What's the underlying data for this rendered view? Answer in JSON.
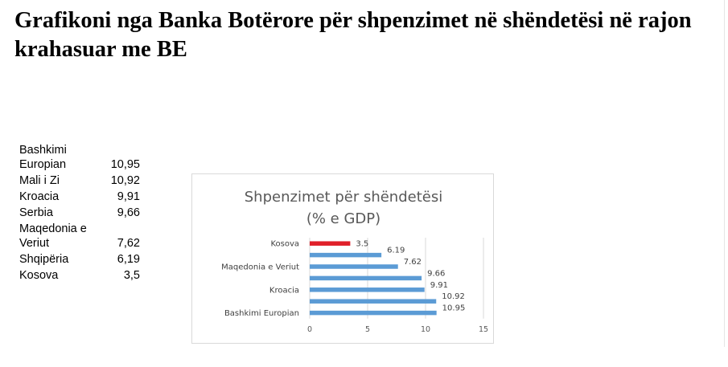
{
  "page": {
    "title": "Grafikoni nga Banka Botërore për shpenzimet në shëndetësi në rajon krahasuar me BE"
  },
  "table": {
    "rows": [
      {
        "name": "Bashkimi Europian",
        "value": "10,95"
      },
      {
        "name": "Mali i Zi",
        "value": "10,92"
      },
      {
        "name": "Kroacia",
        "value": "9,91"
      },
      {
        "name": "Serbia",
        "value": "9,66"
      },
      {
        "name": "Maqedonia e Veriut",
        "value": "7,62"
      },
      {
        "name": "Shqipëria",
        "value": "6,19"
      },
      {
        "name": "Kosova",
        "value": "3,5"
      }
    ]
  },
  "chart_data": {
    "type": "bar",
    "orientation": "horizontal",
    "title": "Shpenzimet për shëndetësi",
    "subtitle": "(% e GDP)",
    "categories": [
      "Kosova",
      "",
      "Maqedonia e Veriut",
      "",
      "Kroacia",
      "",
      "Bashkimi Europian"
    ],
    "values": [
      3.5,
      6.19,
      7.62,
      9.66,
      9.91,
      10.92,
      10.95
    ],
    "data_labels": [
      "3.5",
      "6.19",
      "7.62",
      "9.66",
      "9.91",
      "10.92",
      "10.95"
    ],
    "xlim": [
      0,
      15
    ],
    "xticks": [
      "0",
      "5",
      "10",
      "15"
    ],
    "colors": {
      "highlight": "#e0202a",
      "default": "#5b9bd5"
    },
    "highlight_index": 0,
    "grid": "vertical"
  }
}
